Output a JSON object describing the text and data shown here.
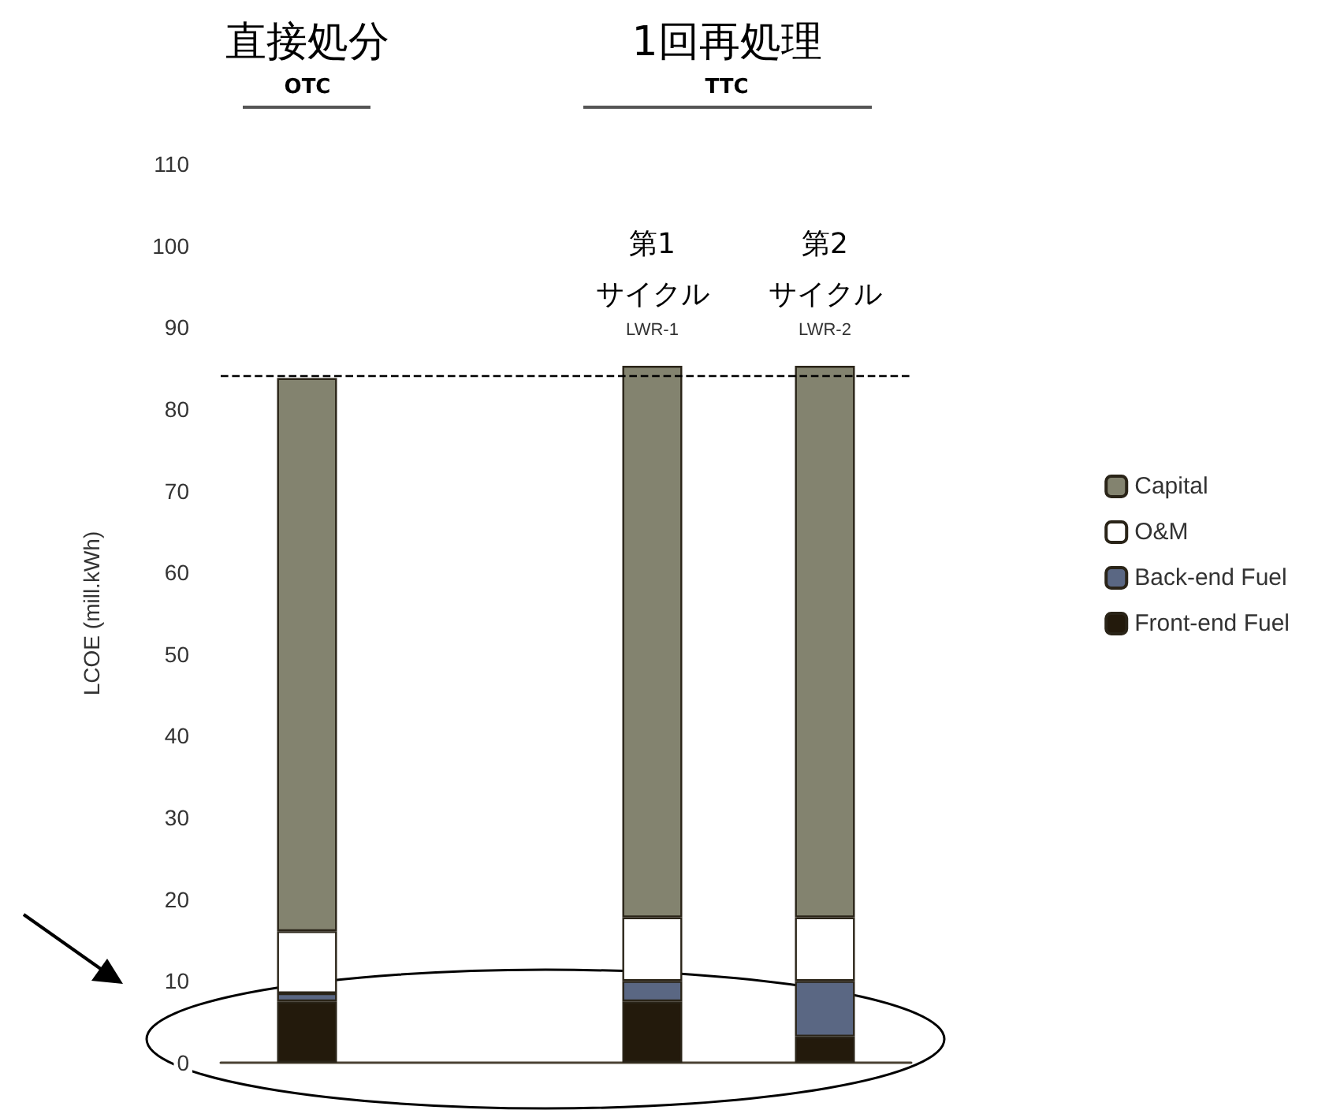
{
  "chart_data": {
    "type": "bar",
    "stacked": true,
    "ylabel": "LCOE (mill.kWh)",
    "categories": [
      null,
      null,
      "LWR-1",
      "LWR-2"
    ],
    "series": [
      {
        "name": "Front-end Fuel",
        "color": "#231a0c",
        "values": [
          7.5,
          null,
          7.5,
          3.2
        ]
      },
      {
        "name": "Back-end Fuel",
        "color": "#5a6783",
        "values": [
          1.0,
          null,
          2.5,
          6.8
        ]
      },
      {
        "name": "O&M",
        "color": "#ffffff",
        "values": [
          7.6,
          null,
          7.8,
          7.8
        ]
      },
      {
        "name": "Capital",
        "color": "#83836f",
        "values": [
          67.7,
          null,
          67.5,
          67.5
        ]
      }
    ],
    "ylim": [
      0,
      110
    ],
    "yticks": [
      0,
      10,
      20,
      30,
      40,
      50,
      60,
      70,
      80,
      90,
      100,
      110
    ],
    "grid": false,
    "legend": "right",
    "ref_lines": [
      {
        "axis": "y",
        "value": 84,
        "line_style": "dashed",
        "color": "#000000"
      }
    ],
    "annotations": [
      "直接処分",
      "OTC",
      "1回再処理",
      "TTC",
      "第1\nサイクル",
      "第2\nサイクル"
    ]
  }
}
